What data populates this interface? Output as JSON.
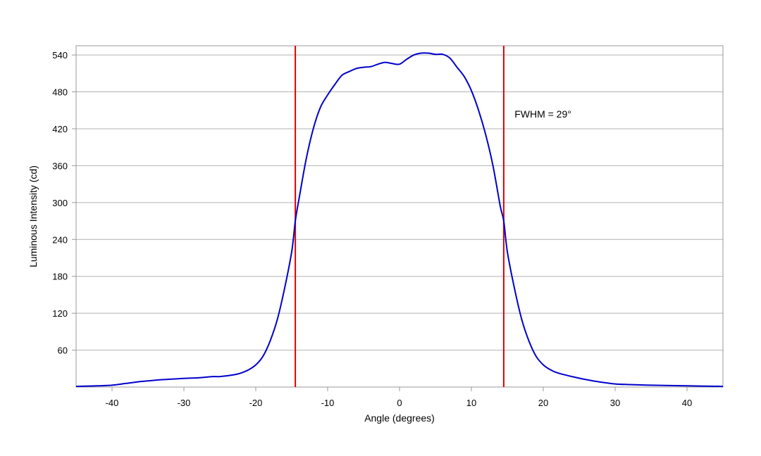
{
  "chart_data": {
    "type": "line",
    "title": "",
    "xlabel": "Angle (degrees)",
    "ylabel": "Luminous Intensity (cd)",
    "xlim": [
      -45,
      45
    ],
    "ylim": [
      0,
      555
    ],
    "x_ticks": [
      -40,
      -30,
      -20,
      -10,
      0,
      10,
      20,
      30,
      40
    ],
    "y_ticks": [
      60,
      120,
      180,
      240,
      300,
      360,
      420,
      480,
      540
    ],
    "grid": "horizontal",
    "legend": "none",
    "series": [
      {
        "color": "#0000cc",
        "points": [
          [
            -45,
            1
          ],
          [
            -42,
            2
          ],
          [
            -40,
            3
          ],
          [
            -38,
            6
          ],
          [
            -36,
            9
          ],
          [
            -35,
            10
          ],
          [
            -33,
            12
          ],
          [
            -30,
            14
          ],
          [
            -28,
            15
          ],
          [
            -26,
            17
          ],
          [
            -25,
            17
          ],
          [
            -23,
            20
          ],
          [
            -22,
            23
          ],
          [
            -21,
            28
          ],
          [
            -20,
            36
          ],
          [
            -19,
            50
          ],
          [
            -18,
            75
          ],
          [
            -17,
            110
          ],
          [
            -16,
            160
          ],
          [
            -15,
            220
          ],
          [
            -14.5,
            270
          ],
          [
            -14,
            305
          ],
          [
            -13,
            370
          ],
          [
            -12,
            420
          ],
          [
            -11,
            455
          ],
          [
            -10,
            475
          ],
          [
            -9,
            492
          ],
          [
            -8,
            507
          ],
          [
            -7,
            513
          ],
          [
            -6,
            518
          ],
          [
            -5,
            520
          ],
          [
            -4,
            521
          ],
          [
            -3,
            525
          ],
          [
            -2,
            528
          ],
          [
            -1,
            526
          ],
          [
            0,
            525
          ],
          [
            1,
            533
          ],
          [
            2,
            540
          ],
          [
            3,
            543
          ],
          [
            4,
            543
          ],
          [
            5,
            541
          ],
          [
            6,
            541
          ],
          [
            7,
            535
          ],
          [
            8,
            520
          ],
          [
            9,
            505
          ],
          [
            10,
            482
          ],
          [
            11,
            450
          ],
          [
            12,
            410
          ],
          [
            13,
            360
          ],
          [
            14,
            295
          ],
          [
            14.5,
            270
          ],
          [
            15,
            220
          ],
          [
            16,
            160
          ],
          [
            17,
            110
          ],
          [
            18,
            75
          ],
          [
            19,
            50
          ],
          [
            20,
            36
          ],
          [
            21,
            28
          ],
          [
            22,
            23
          ],
          [
            24,
            17
          ],
          [
            26,
            12
          ],
          [
            28,
            8
          ],
          [
            30,
            5
          ],
          [
            32,
            4
          ],
          [
            35,
            3
          ],
          [
            40,
            2
          ],
          [
            45,
            1
          ]
        ]
      }
    ],
    "markers": [
      {
        "x": -14.5,
        "color": "#dd0000"
      },
      {
        "x": 14.5,
        "color": "#dd0000"
      }
    ],
    "annotation": {
      "text": "FWHM = 29°",
      "x": 16,
      "y": 450
    }
  }
}
